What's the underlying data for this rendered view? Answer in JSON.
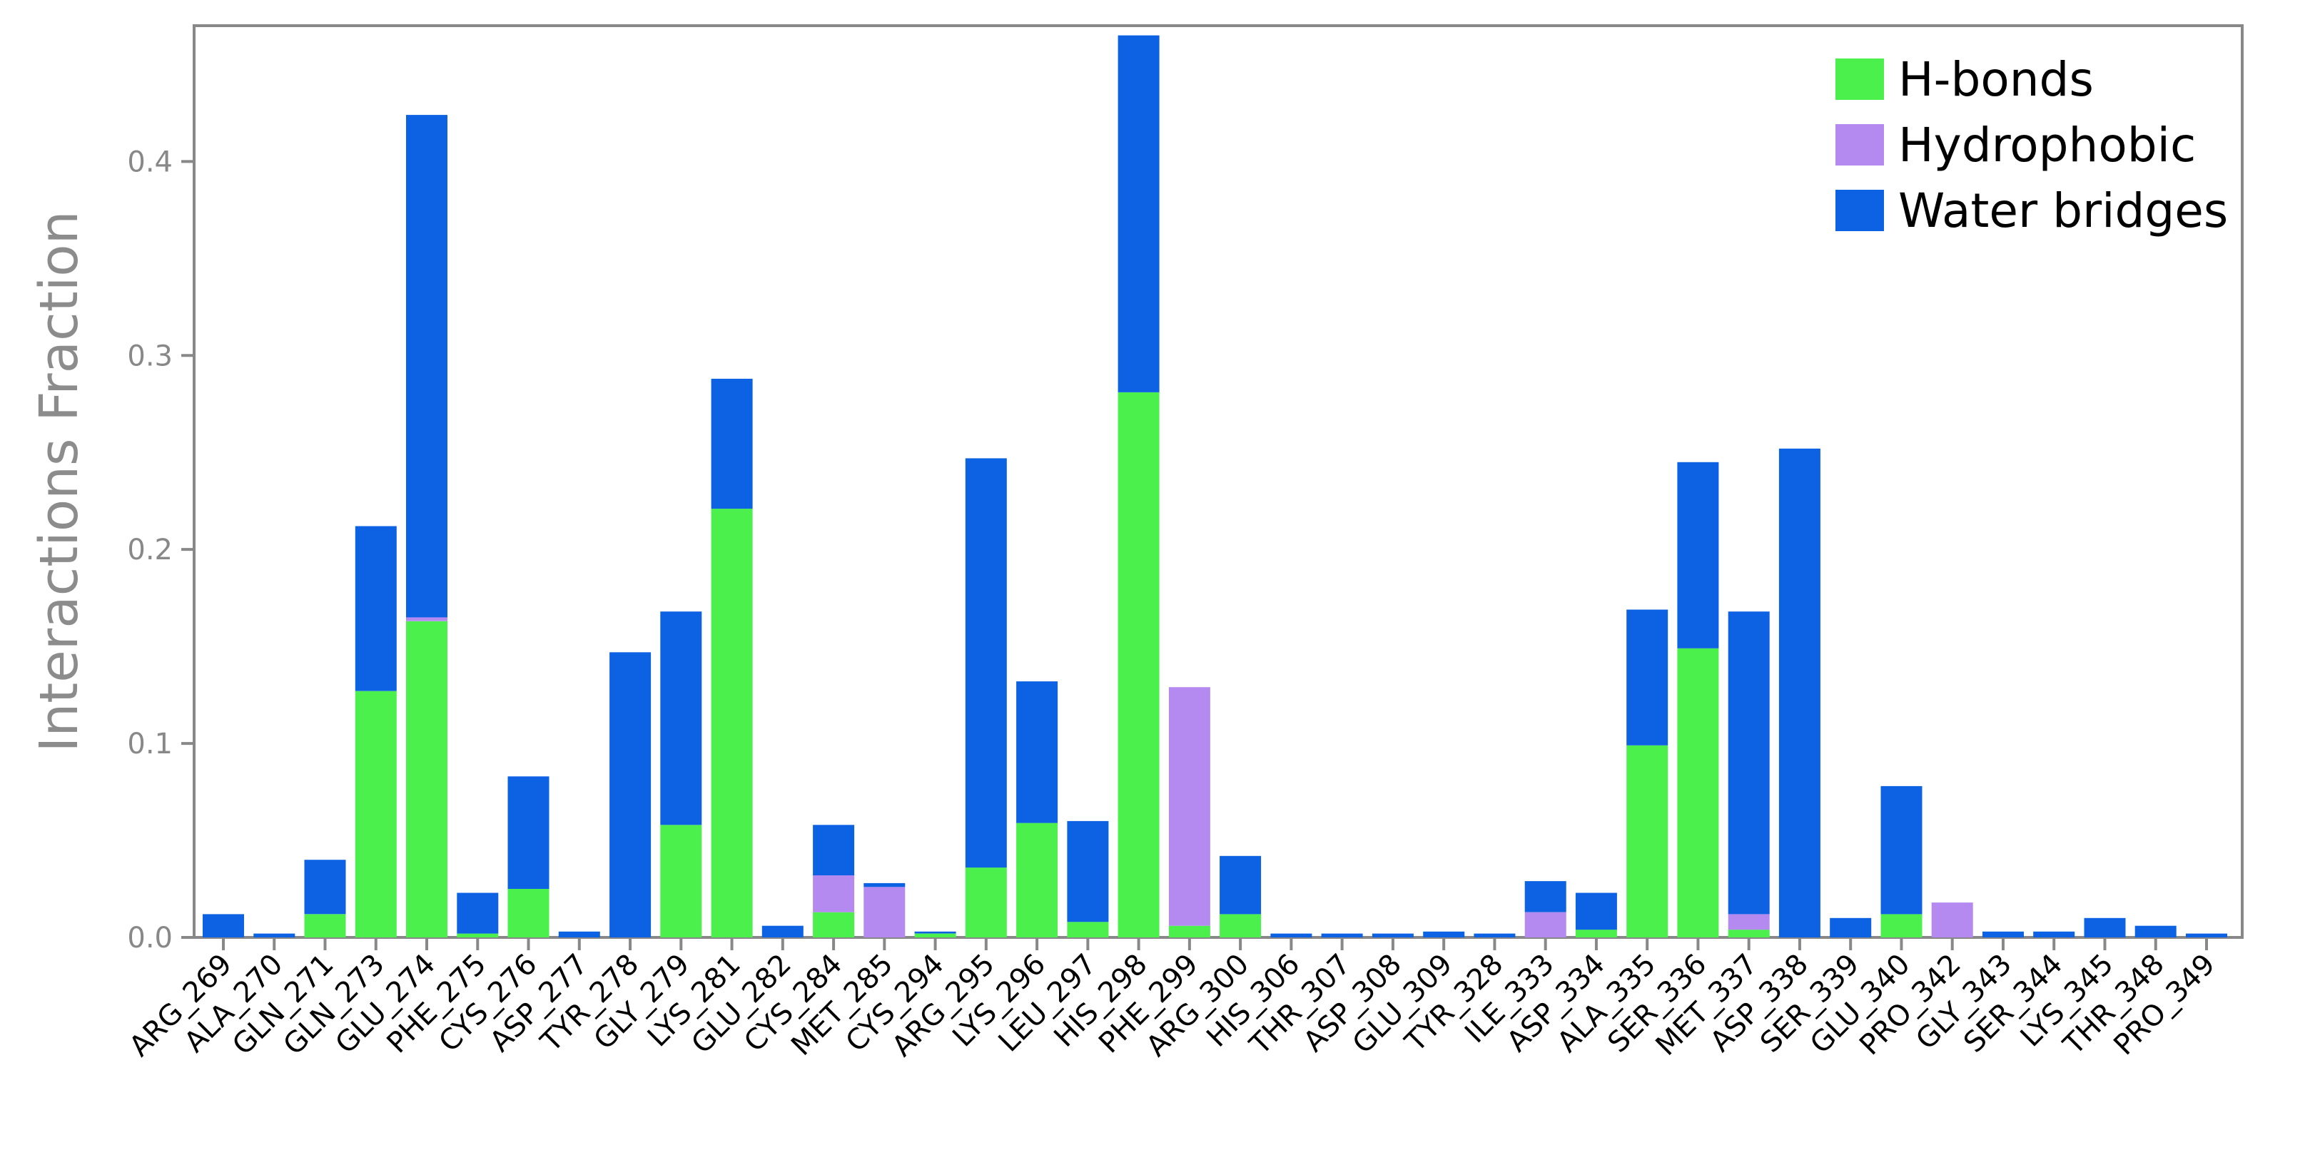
{
  "chart_data": {
    "type": "bar",
    "stacked": true,
    "ylabel": "Interactions Fraction",
    "xlabel": "",
    "ylim": [
      0,
      0.47
    ],
    "yticks": [
      0.0,
      0.1,
      0.2,
      0.3,
      0.4
    ],
    "ytick_labels": [
      "0.0",
      "0.1",
      "0.2",
      "0.3",
      "0.4"
    ],
    "grid": false,
    "legend_position": "top-right",
    "categories": [
      "ARG_269",
      "ALA_270",
      "GLN_271",
      "GLN_273",
      "GLU_274",
      "PHE_275",
      "CYS_276",
      "ASP_277",
      "TYR_278",
      "GLY_279",
      "LYS_281",
      "GLU_282",
      "CYS_284",
      "MET_285",
      "CYS_294",
      "ARG_295",
      "LYS_296",
      "LEU_297",
      "HIS_298",
      "PHE_299",
      "ARG_300",
      "HIS_306",
      "THR_307",
      "ASP_308",
      "GLU_309",
      "TYR_328",
      "ILE_333",
      "ASP_334",
      "ALA_335",
      "SER_336",
      "MET_337",
      "ASP_338",
      "SER_339",
      "GLU_340",
      "PRO_342",
      "GLY_343",
      "SER_344",
      "LYS_345",
      "THR_348",
      "PRO_349"
    ],
    "series": [
      {
        "name": "H-bonds",
        "color": "#4cf04c",
        "values": [
          0.0,
          0.0,
          0.012,
          0.127,
          0.163,
          0.002,
          0.025,
          0.0,
          0.0,
          0.058,
          0.221,
          0.0,
          0.013,
          0.0,
          0.002,
          0.036,
          0.059,
          0.008,
          0.281,
          0.006,
          0.012,
          0.0,
          0.0,
          0.0,
          0.0,
          0.0,
          0.0,
          0.004,
          0.099,
          0.149,
          0.004,
          0.0,
          0.0,
          0.012,
          0.0,
          0.0,
          0.0,
          0.0,
          0.0,
          0.0
        ]
      },
      {
        "name": "Hydrophobic",
        "color": "#b48af0",
        "values": [
          0.0,
          0.0,
          0.0,
          0.0,
          0.002,
          0.0,
          0.0,
          0.0,
          0.0,
          0.0,
          0.0,
          0.0,
          0.019,
          0.026,
          0.0,
          0.0,
          0.0,
          0.0,
          0.0,
          0.123,
          0.0,
          0.0,
          0.0,
          0.0,
          0.0,
          0.0,
          0.013,
          0.0,
          0.0,
          0.0,
          0.008,
          0.0,
          0.0,
          0.0,
          0.018,
          0.0,
          0.0,
          0.0,
          0.0,
          0.0
        ]
      },
      {
        "name": "Water bridges",
        "color": "#0d61e3",
        "values": [
          0.012,
          0.002,
          0.028,
          0.085,
          0.259,
          0.021,
          0.058,
          0.003,
          0.147,
          0.11,
          0.067,
          0.006,
          0.026,
          0.002,
          0.001,
          0.211,
          0.073,
          0.052,
          0.184,
          0.0,
          0.03,
          0.002,
          0.002,
          0.002,
          0.003,
          0.002,
          0.016,
          0.019,
          0.07,
          0.096,
          0.156,
          0.252,
          0.01,
          0.066,
          0.0,
          0.003,
          0.003,
          0.01,
          0.006,
          0.002
        ]
      }
    ]
  }
}
